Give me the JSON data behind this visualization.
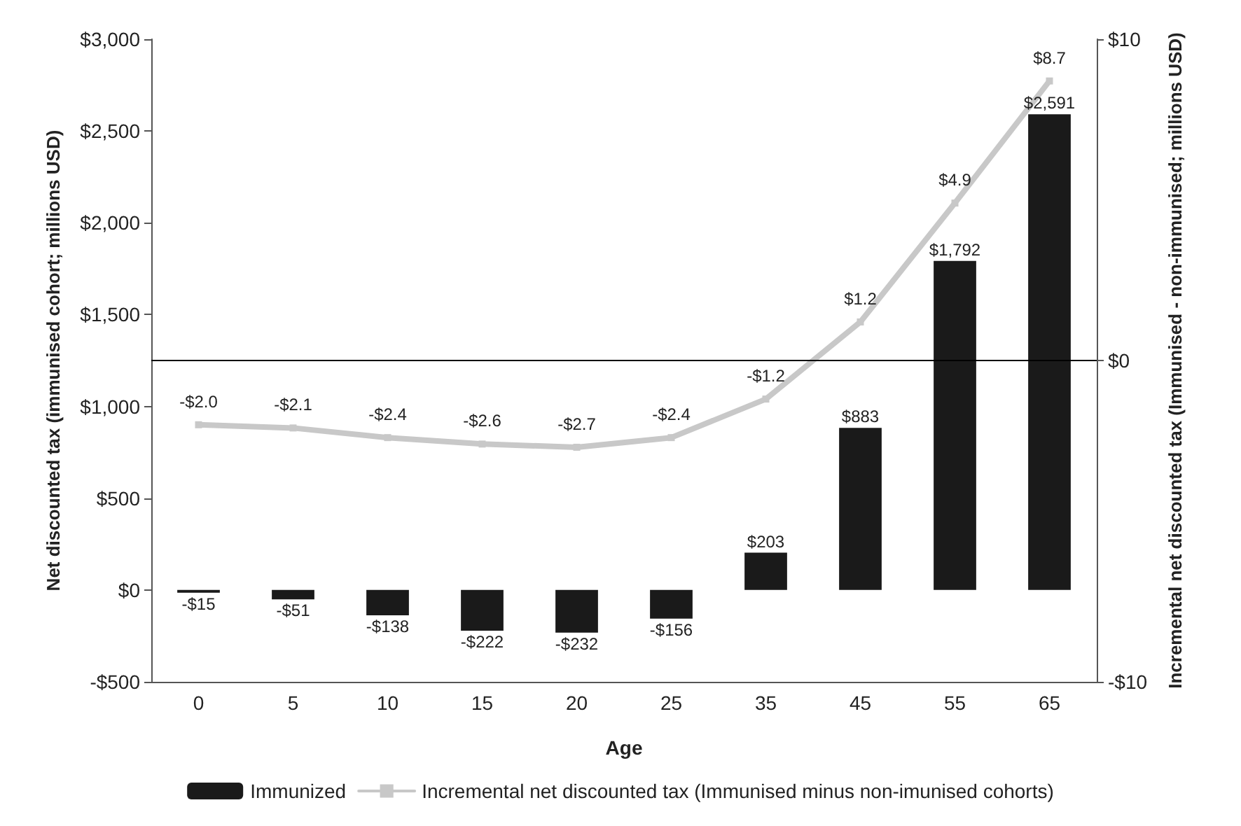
{
  "chart_data": {
    "type": "bar",
    "xlabel": "Age",
    "ylabel": "Net discounted tax (immunised cohort; millions USD)",
    "y2label": "Incremental net discounted tax (Immunised - non-immunised; millions USD)",
    "categories": [
      "0",
      "5",
      "10",
      "15",
      "20",
      "25",
      "35",
      "45",
      "55",
      "65"
    ],
    "series": [
      {
        "name": "Immunized",
        "color": "#1a1a1a",
        "values": [
          -15,
          -51,
          -138,
          -222,
          -232,
          -156,
          203,
          883,
          1792,
          2591
        ],
        "value_labels": [
          "-$15",
          "-$51",
          "-$138",
          "-$222",
          "-$232",
          "-$156",
          "$203",
          "$883",
          "$1,792",
          "$2,591"
        ]
      },
      {
        "name": "Incremental net discounted tax (Immunised minus non-imunised cohorts)",
        "type": "line",
        "axis": "y2",
        "color": "#c8c8c8",
        "marker": "square",
        "line_style": "solid",
        "values": [
          -2.0,
          -2.1,
          -2.4,
          -2.6,
          -2.7,
          -2.4,
          -1.2,
          1.2,
          4.9,
          8.7
        ],
        "value_labels": [
          "-$2.0",
          "-$2.1",
          "-$2.4",
          "-$2.6",
          "-$2.7",
          "-$2.4",
          "-$1.2",
          "$1.2",
          "$4.9",
          "$8.7"
        ]
      }
    ],
    "ylim": [
      -500,
      3000
    ],
    "yticks": [
      {
        "value": -500,
        "label": "-$500"
      },
      {
        "value": 0,
        "label": "$0"
      },
      {
        "value": 500,
        "label": "$500"
      },
      {
        "value": 1000,
        "label": "$1,000"
      },
      {
        "value": 1500,
        "label": "$1,500"
      },
      {
        "value": 2000,
        "label": "$2,000"
      },
      {
        "value": 2500,
        "label": "$2,500"
      },
      {
        "value": 3000,
        "label": "$3,000"
      }
    ],
    "y2lim": [
      -10,
      10
    ],
    "y2ticks": [
      {
        "value": -10,
        "label": "-$10"
      },
      {
        "value": 0,
        "label": "$0"
      },
      {
        "value": 10,
        "label": "$10"
      }
    ],
    "ref_lines": [
      {
        "axis": "y2",
        "value": 0,
        "color": "#000000"
      }
    ],
    "grid": false,
    "legend": "bottom"
  }
}
